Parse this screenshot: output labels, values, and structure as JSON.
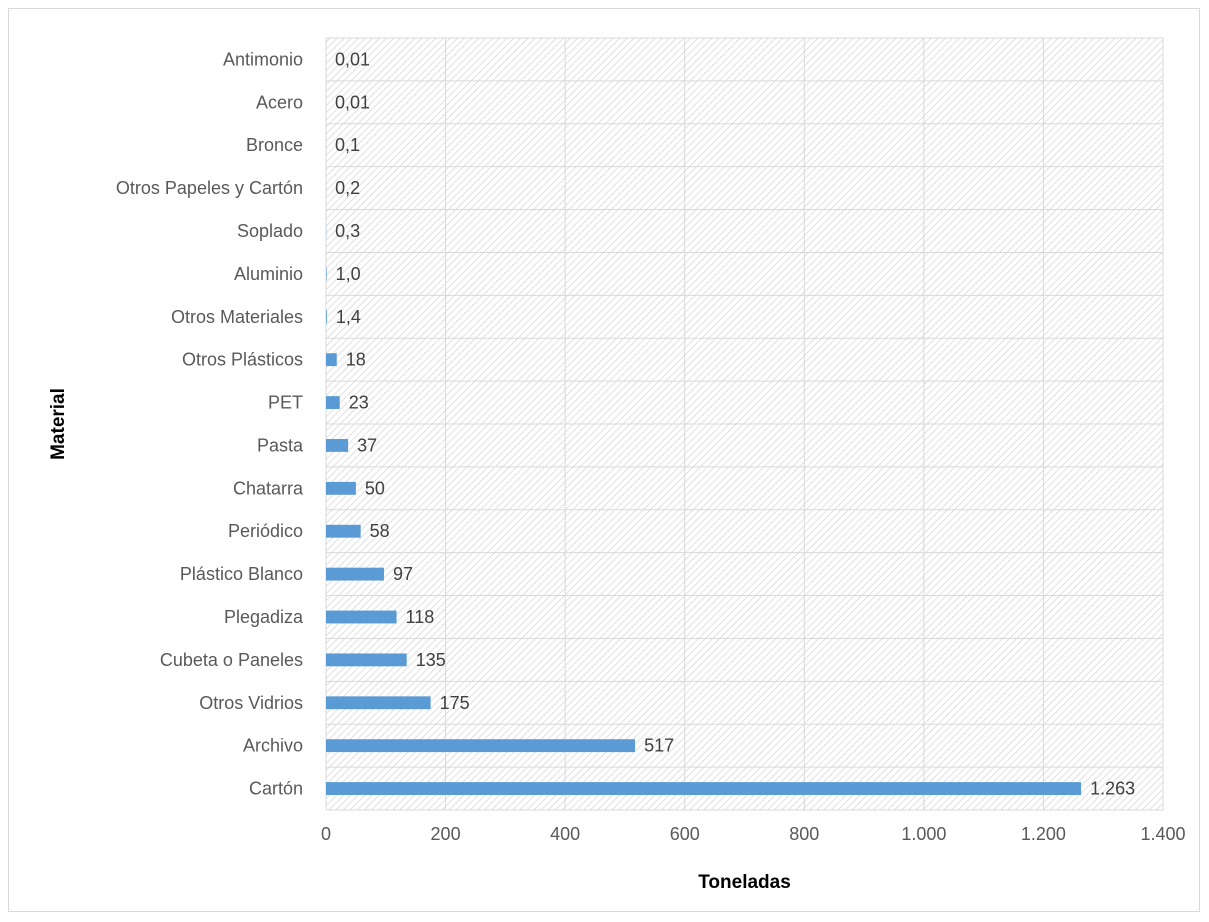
{
  "chart_data": {
    "type": "bar",
    "orientation": "horizontal",
    "xlabel": "Toneladas",
    "ylabel": "Material",
    "xlim": [
      0,
      1400
    ],
    "x_ticks": [
      0,
      200,
      400,
      600,
      800,
      1000,
      1200,
      1400
    ],
    "x_tick_labels": [
      "0",
      "200",
      "400",
      "600",
      "800",
      "1.000",
      "1.200",
      "1.400"
    ],
    "grid": "vertical and horizontal gridlines, hatched plot background",
    "bar_color": "#5b9bd5",
    "categories": [
      "Antimonio",
      "Acero",
      "Bronce",
      "Otros Papeles y Cartón",
      "Soplado",
      "Aluminio",
      "Otros Materiales",
      "Otros Plásticos",
      "PET",
      "Pasta",
      "Chatarra",
      "Periódico",
      "Plástico Blanco",
      "Plegadiza",
      "Cubeta o Paneles",
      "Otros Vidrios",
      "Archivo",
      "Cartón"
    ],
    "values": [
      0.01,
      0.01,
      0.1,
      0.2,
      0.3,
      1.0,
      1.4,
      18,
      23,
      37,
      50,
      58,
      97,
      118,
      135,
      175,
      517,
      1263
    ],
    "data_labels": [
      "0,01",
      "0,01",
      "0,1",
      "0,2",
      "0,3",
      "1,0",
      "1,4",
      "18",
      "23",
      "37",
      "50",
      "58",
      "97",
      "118",
      "135",
      "175",
      "517",
      "1.263"
    ]
  }
}
